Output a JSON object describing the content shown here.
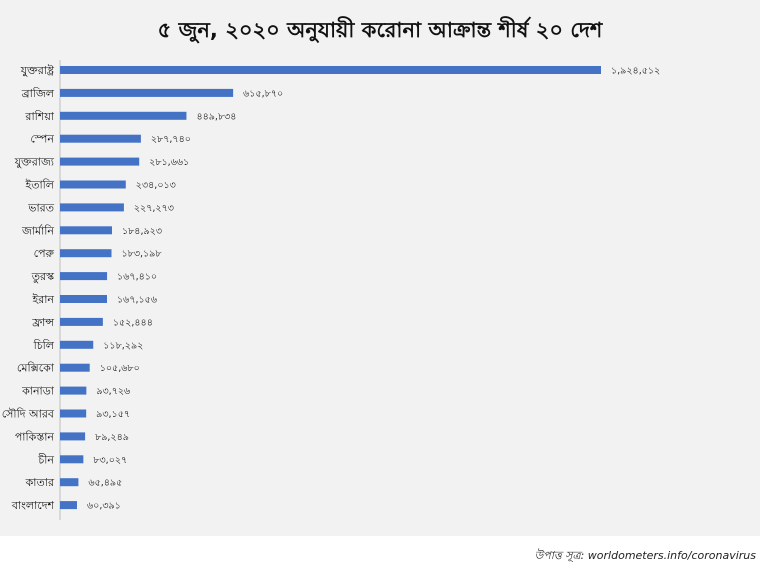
{
  "chart_data": {
    "type": "bar",
    "orientation": "horizontal",
    "title": "৫ জুন, ২০২০ অনুযায়ী করোনা আক্রান্ত শীর্ষ ২০ দেশ",
    "xlabel": "",
    "ylabel": "",
    "grid": false,
    "bar_color": "#4472c4",
    "xlim": [
      0,
      1924512
    ],
    "categories": [
      "যুক্তরাষ্ট্র",
      "ব্রাজিল",
      "রাশিয়া",
      "স্পেন",
      "যুক্তরাজ্য",
      "ইতালি",
      "ভারত",
      "জার্মানি",
      "পেরু",
      "তুরস্ক",
      "ইরান",
      "ফ্রান্স",
      "চিলি",
      "মেক্সিকো",
      "কানাডা",
      "সৌদি আরব",
      "পাকিস্তান",
      "চীন",
      "কাতার",
      "বাংলাদেশ"
    ],
    "values": [
      1924512,
      615870,
      449834,
      287740,
      281661,
      234013,
      227273,
      184923,
      183198,
      167410,
      167156,
      152444,
      118292,
      105680,
      93726,
      93157,
      89249,
      83027,
      65495,
      60391
    ],
    "value_labels": [
      "১,৯২৪,৫১২",
      "৬১৫,৮৭০",
      "৪৪৯,৮৩৪",
      "২৮৭,৭৪০",
      "২৮১,৬৬১",
      "২৩৪,০১৩",
      "২২৭,২৭৩",
      "১৮৪,৯২৩",
      "১৮৩,১৯৮",
      "১৬৭,৪১০",
      "১৬৭,১৫৬",
      "১৫২,৪৪৪",
      "১১৮,২৯২",
      "১০৫,৬৮০",
      "৯৩,৭২৬",
      "৯৩,১৫৭",
      "৮৯,২৪৯",
      "৮৩,০২৭",
      "৬৫,৪৯৫",
      "৬০,৩৯১"
    ]
  },
  "source": "উপাত্ত সূত্র: worldometers.info/coronavirus"
}
